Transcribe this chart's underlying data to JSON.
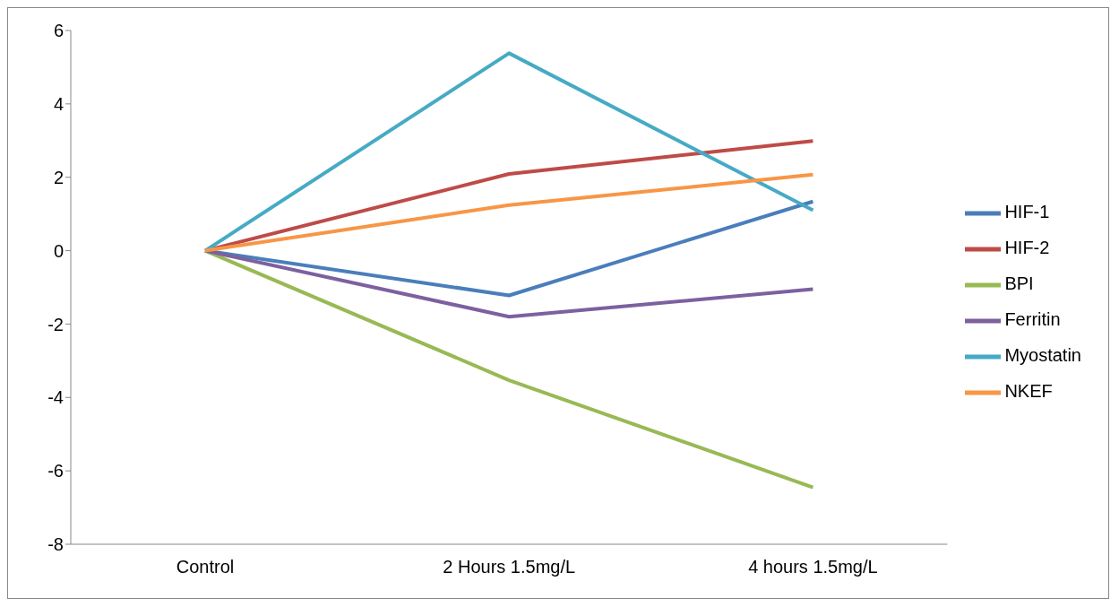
{
  "chart_data": {
    "type": "line",
    "categories": [
      "Control",
      "2 Hours 1.5mg/L",
      "4 hours 1.5mg/L"
    ],
    "series": [
      {
        "name": "HIF-1",
        "color": "#4a7ebb",
        "values": [
          0,
          -1.22,
          1.34
        ]
      },
      {
        "name": "HIF-2",
        "color": "#be4b48",
        "values": [
          0,
          2.09,
          2.99
        ]
      },
      {
        "name": "BPI",
        "color": "#98b954",
        "values": [
          0,
          -3.53,
          -6.45
        ]
      },
      {
        "name": "Ferritin",
        "color": "#7d60a0",
        "values": [
          0,
          -1.8,
          -1.05
        ]
      },
      {
        "name": "Myostatin",
        "color": "#46aac5",
        "values": [
          0,
          5.38,
          1.1
        ]
      },
      {
        "name": "NKEF",
        "color": "#f79646",
        "values": [
          0,
          1.24,
          2.07
        ]
      }
    ],
    "ylim": [
      -8,
      6
    ],
    "yticks": [
      -8,
      -6,
      -4,
      -2,
      0,
      2,
      4,
      6
    ],
    "legend": "right",
    "marker": "none",
    "line_style": "solid"
  }
}
